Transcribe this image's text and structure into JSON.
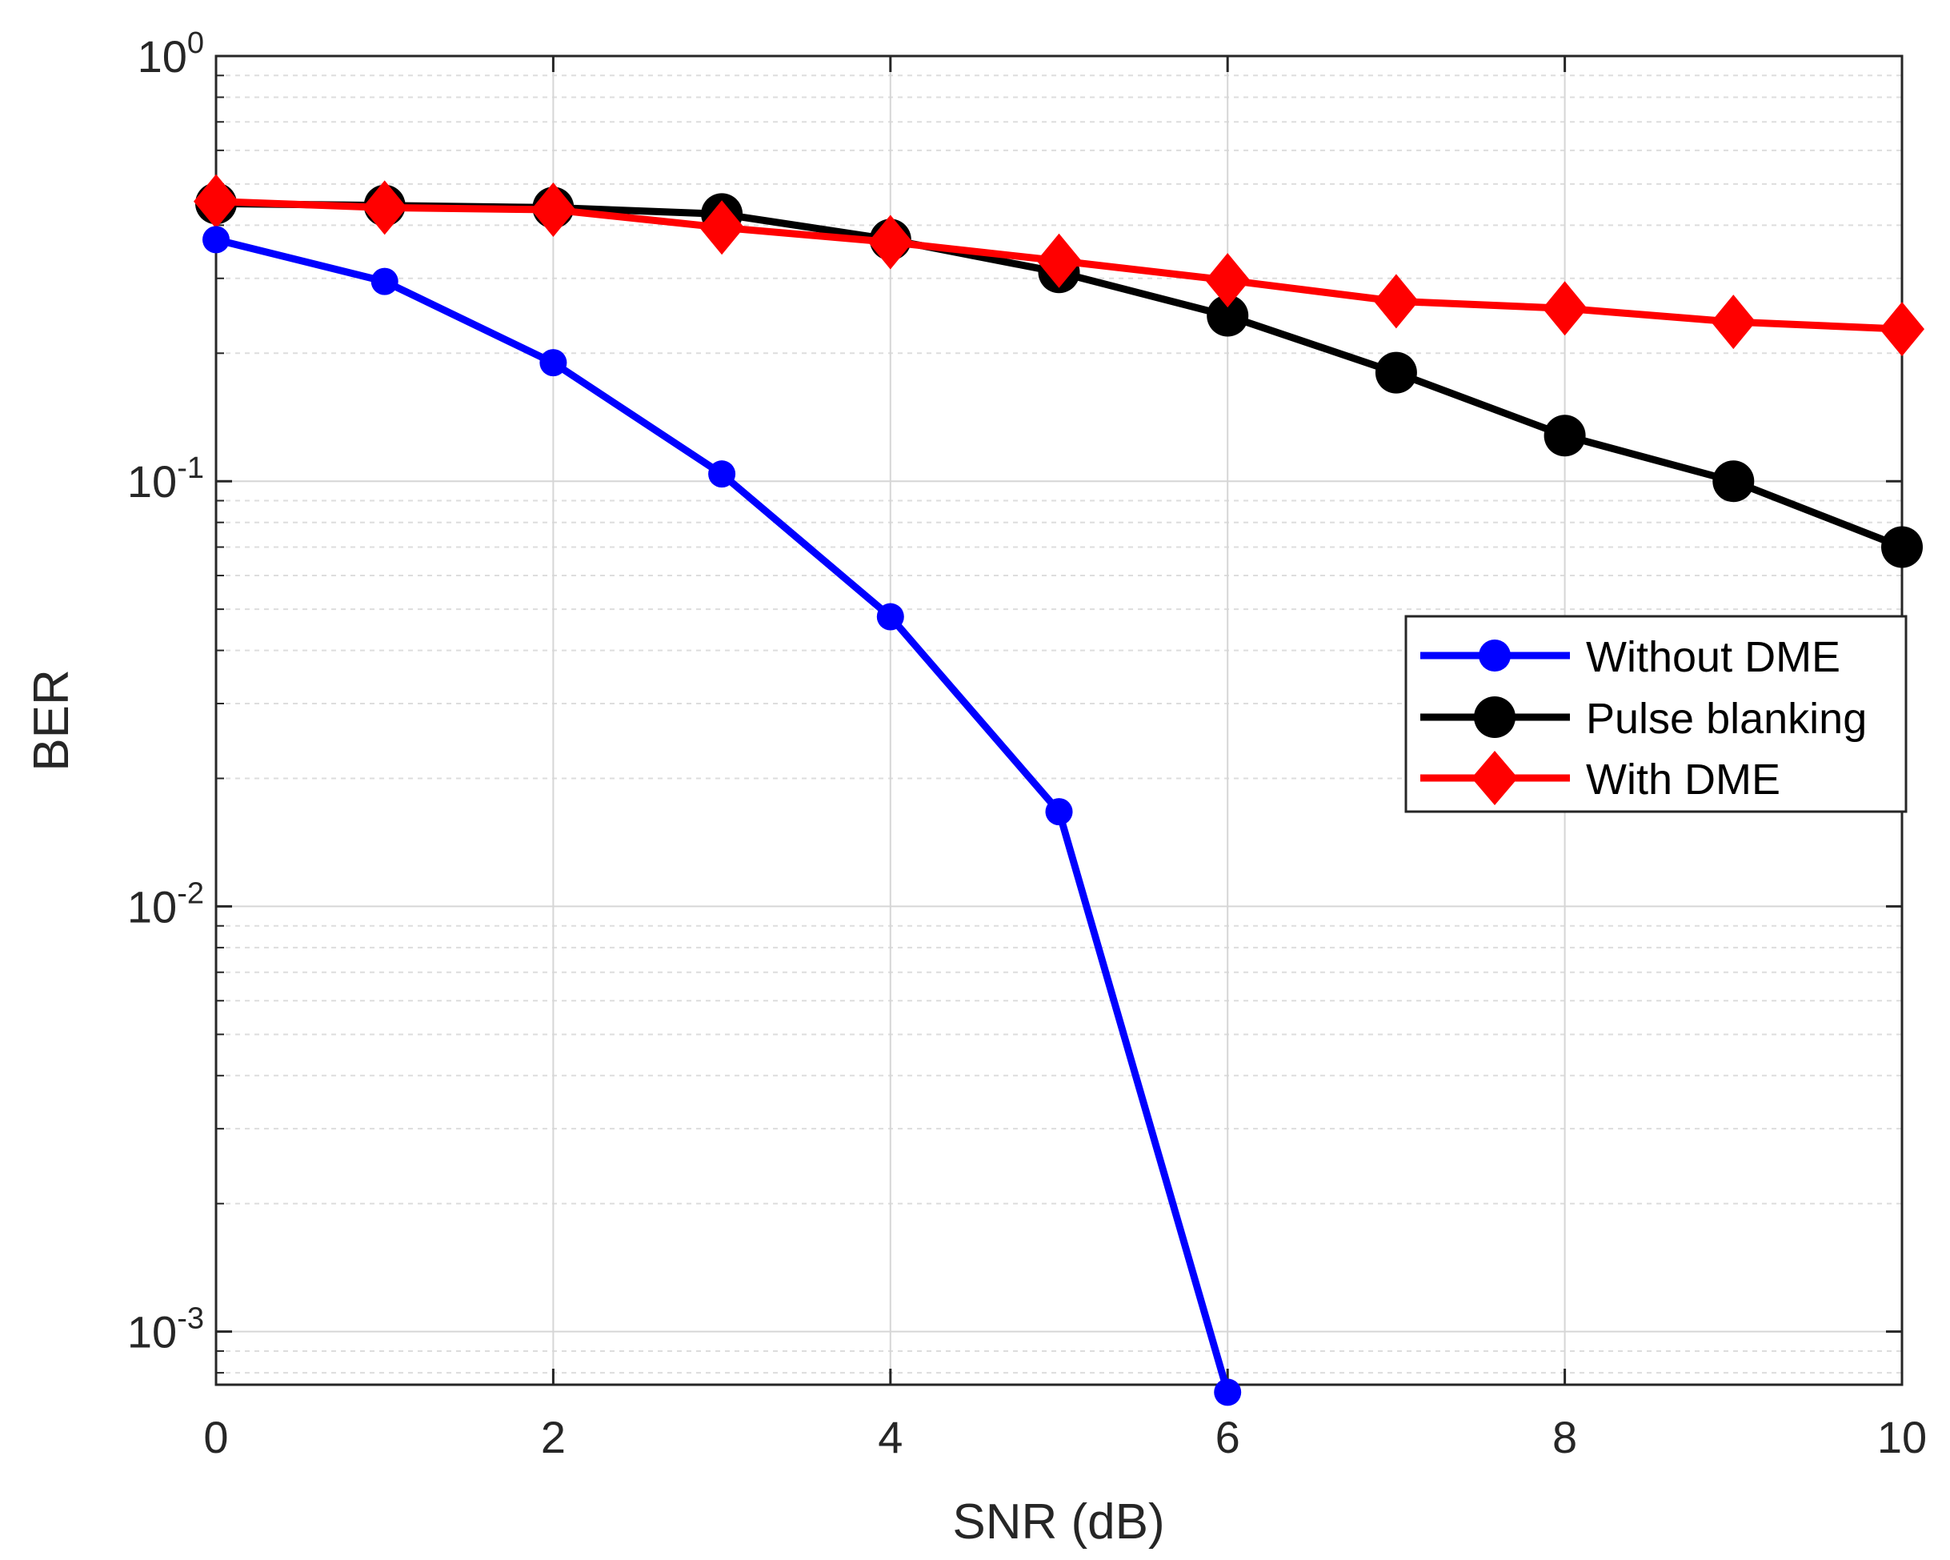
{
  "chart_data": {
    "type": "line",
    "title": "",
    "xlabel": "SNR (dB)",
    "ylabel": "BER",
    "yscale": "log",
    "xlim": [
      0,
      10
    ],
    "ylim": [
      0.00075,
      1
    ],
    "grid": true,
    "minor_grid": true,
    "xticks": [
      0,
      2,
      4,
      6,
      8,
      10
    ],
    "xtick_labels": [
      "0",
      "2",
      "4",
      "6",
      "8",
      "10"
    ],
    "yticks": [
      {
        "value": 1,
        "base": "10",
        "exp": "0"
      },
      {
        "value": 0.1,
        "base": "10",
        "exp": "-1"
      },
      {
        "value": 0.01,
        "base": "10",
        "exp": "-2"
      },
      {
        "value": 0.001,
        "base": "10",
        "exp": "-3"
      }
    ],
    "legend_position": "right",
    "series": [
      {
        "name": "Without DME",
        "color": "#0000ff",
        "marker": "circle",
        "x": [
          0,
          1,
          2,
          3,
          4,
          5,
          6
        ],
        "values": [
          0.37,
          0.295,
          0.19,
          0.104,
          0.048,
          0.0167,
          0.00072
        ]
      },
      {
        "name": "Pulse blanking",
        "color": "#000000",
        "marker": "circle",
        "x": [
          0,
          1,
          2,
          3,
          4,
          5,
          6,
          7,
          8,
          9,
          10
        ],
        "values": [
          0.45,
          0.445,
          0.44,
          0.425,
          0.37,
          0.31,
          0.245,
          0.18,
          0.128,
          0.1,
          0.07
        ]
      },
      {
        "name": "With DME",
        "color": "#ff0000",
        "marker": "diamond",
        "x": [
          0,
          1,
          2,
          3,
          4,
          5,
          6,
          7,
          8,
          9,
          10
        ],
        "values": [
          0.455,
          0.44,
          0.435,
          0.395,
          0.365,
          0.33,
          0.297,
          0.265,
          0.255,
          0.237,
          0.228
        ]
      }
    ]
  }
}
